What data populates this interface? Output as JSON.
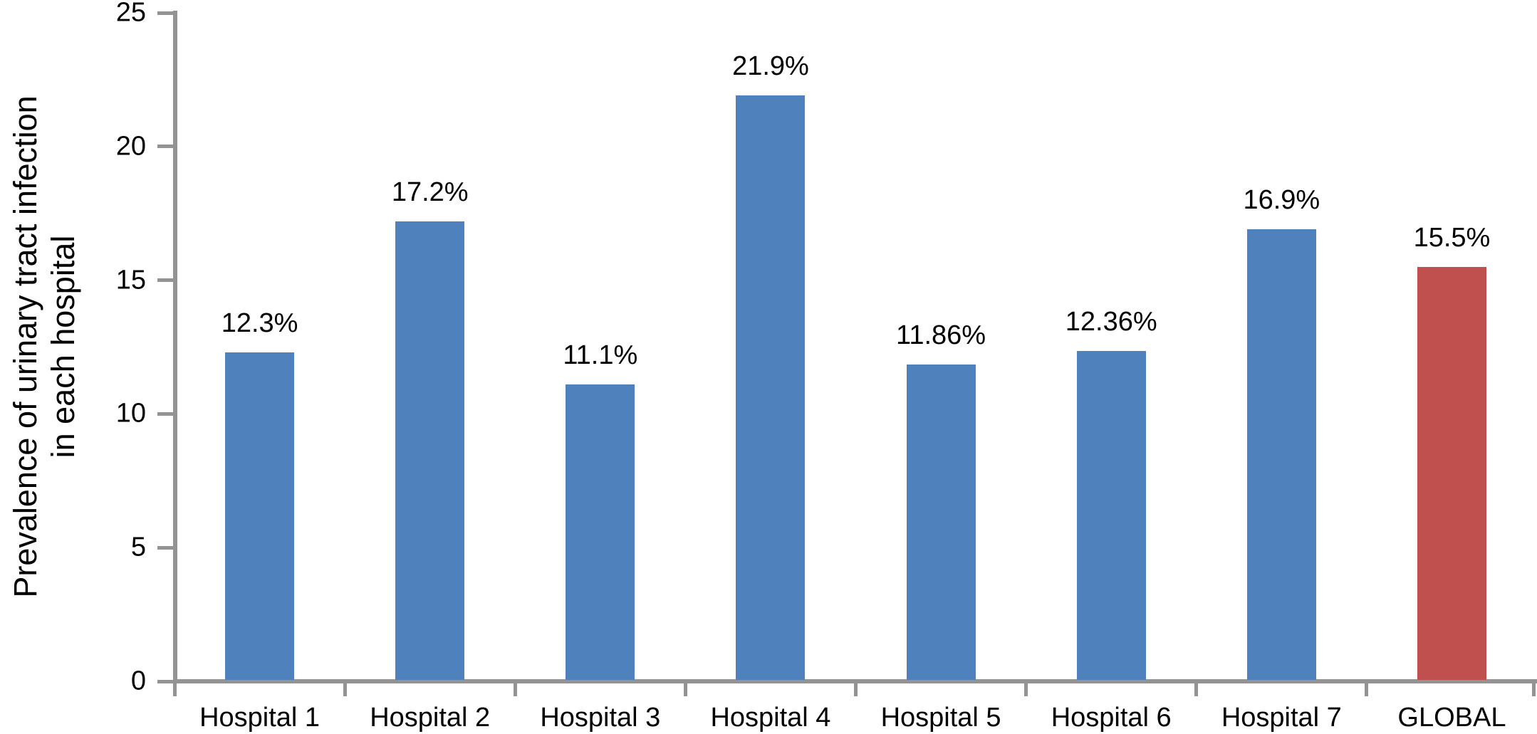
{
  "chart_data": {
    "type": "bar",
    "title": "",
    "ylabel_line1": "Prevalence of urinary tract infection",
    "ylabel_line2": "in each hospital",
    "xlabel": "",
    "ylim": [
      0,
      25
    ],
    "yticks": [
      0,
      5,
      10,
      15,
      20,
      25
    ],
    "grid": false,
    "legend_position": "none",
    "categories": [
      "Hospital 1",
      "Hospital 2",
      "Hospital 3",
      "Hospital 4",
      "Hospital 5",
      "Hospital 6",
      "Hospital 7",
      "GLOBAL"
    ],
    "values": [
      12.3,
      17.2,
      11.1,
      21.9,
      11.86,
      12.36,
      16.9,
      15.5
    ],
    "value_labels": [
      "12.3%",
      "17.2%",
      "11.1%",
      "21.9%",
      "11.86%",
      "12.36%",
      "16.9%",
      "15.5%"
    ],
    "bar_colors": [
      "#4f81bd",
      "#4f81bd",
      "#4f81bd",
      "#4f81bd",
      "#4f81bd",
      "#4f81bd",
      "#4f81bd",
      "#c0504d"
    ],
    "colors": {
      "bar_blue": "#4f81bd",
      "bar_red": "#c0504d",
      "axis_gray": "#939393",
      "text": "#000000",
      "background": "#ffffff"
    }
  }
}
